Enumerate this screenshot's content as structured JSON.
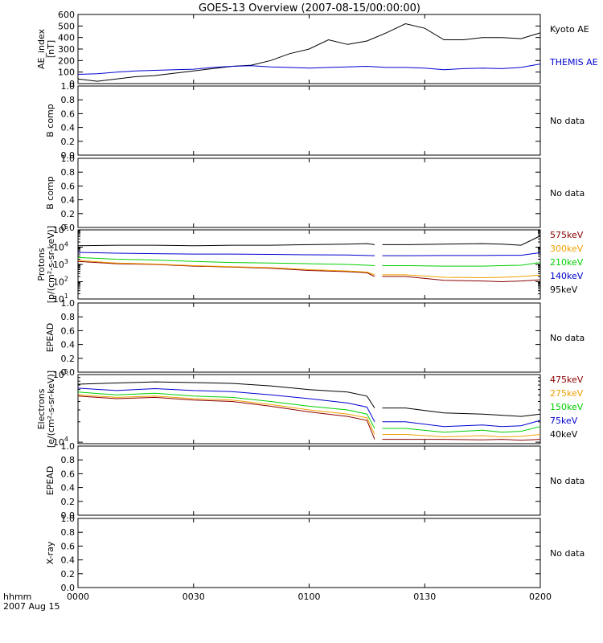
{
  "title": "GOES-13 Overview (2007-08-15/00:00:00)",
  "footer": {
    "left_label": "hhmm",
    "date_label": "2007 Aug 15"
  },
  "colors": {
    "black": "#000000",
    "blue": "#0000d0",
    "green": "#00d000",
    "orange": "#f0a000",
    "darkred": "#8b0000"
  },
  "chart_data": [
    {
      "type": "line",
      "ylabel": "AE_index",
      "ylabel2": "[nT]",
      "ylim": [
        0,
        600
      ],
      "yticks": [
        "0",
        "100",
        "200",
        "300",
        "400",
        "500",
        "600"
      ],
      "x": [
        0,
        5,
        10,
        15,
        20,
        25,
        30,
        35,
        40,
        45,
        50,
        55,
        60,
        65,
        70,
        75,
        80,
        85,
        90,
        95,
        100,
        105,
        110,
        115,
        120
      ],
      "series": [
        {
          "name": "Kyoto AE",
          "color": "#000000",
          "values": [
            40,
            20,
            40,
            60,
            70,
            90,
            110,
            130,
            150,
            160,
            200,
            260,
            300,
            380,
            340,
            370,
            440,
            520,
            480,
            380,
            380,
            400,
            400,
            390,
            440
          ]
        },
        {
          "name": "THEMIS AE",
          "color": "#0000d0",
          "values": [
            80,
            85,
            100,
            110,
            115,
            120,
            125,
            140,
            150,
            155,
            145,
            140,
            135,
            140,
            145,
            150,
            140,
            140,
            135,
            120,
            130,
            135,
            130,
            140,
            170
          ]
        }
      ]
    },
    {
      "type": "line",
      "ylabel": "B comp",
      "ylim": [
        0,
        1
      ],
      "yticks": [
        "0.0",
        "0.2",
        "0.4",
        "0.6",
        "0.8",
        "1.0"
      ],
      "status": "No data",
      "series": []
    },
    {
      "type": "line",
      "ylabel": "B comp",
      "ylim": [
        0,
        1
      ],
      "yticks": [
        "0.0",
        "0.2",
        "0.4",
        "0.6",
        "0.8",
        "1.0"
      ],
      "status": "No data",
      "series": []
    },
    {
      "type": "line",
      "scale": "log",
      "ylabel": "Protons",
      "ylabel2": "[p/(cm²-s-sr-keV)]",
      "ylim_exp": [
        1,
        5
      ],
      "ytick_exps": [
        1,
        2,
        3,
        4,
        5
      ],
      "x": [
        0,
        10,
        20,
        30,
        40,
        50,
        60,
        70,
        75,
        85,
        95,
        105,
        110,
        115,
        120
      ],
      "gap": [
        77,
        79
      ],
      "series": [
        {
          "name": "575keV",
          "color": "#8b0000",
          "values": [
            1500,
            1100,
            1000,
            800,
            700,
            600,
            450,
            380,
            330,
            200,
            120,
            110,
            100,
            110,
            130
          ]
        },
        {
          "name": "300keV",
          "color": "#f0a000",
          "values": [
            1700,
            1200,
            1050,
            850,
            750,
            650,
            500,
            420,
            360,
            250,
            180,
            170,
            180,
            200,
            240
          ]
        },
        {
          "name": "210keV",
          "color": "#00d000",
          "values": [
            2500,
            2000,
            1800,
            1500,
            1300,
            1200,
            1100,
            1000,
            900,
            850,
            800,
            800,
            850,
            900,
            1300
          ]
        },
        {
          "name": "140keV",
          "color": "#0000d0",
          "values": [
            5000,
            4500,
            4200,
            4000,
            4000,
            3800,
            3600,
            3500,
            3300,
            3200,
            3300,
            3300,
            3400,
            3400,
            4800
          ]
        },
        {
          "name": "95keV",
          "color": "#000000",
          "values": [
            12000,
            13000,
            13000,
            12000,
            13000,
            13000,
            14000,
            15000,
            16000,
            14000,
            15000,
            16000,
            15000,
            13000,
            45000
          ]
        }
      ]
    },
    {
      "type": "line",
      "ylabel": "EPEAD",
      "ylim": [
        0,
        1
      ],
      "yticks": [
        "0.0",
        "0.2",
        "0.4",
        "0.6",
        "0.8",
        "1.0"
      ],
      "status": "No data",
      "series": []
    },
    {
      "type": "line",
      "scale": "log",
      "ylabel": "Electrons",
      "ylabel2": "[e/(cm²-s-sr-keV)]",
      "ylim": [
        9500,
        100000
      ],
      "ytick_exps": [
        4,
        5
      ],
      "x": [
        0,
        10,
        20,
        30,
        40,
        50,
        60,
        70,
        75,
        85,
        95,
        105,
        110,
        115,
        120
      ],
      "gap": [
        77,
        79
      ],
      "series": [
        {
          "name": "475keV",
          "color": "#8b0000",
          "values": [
            48000,
            44000,
            46000,
            42000,
            40000,
            34000,
            28000,
            24000,
            21000,
            11000,
            11000,
            10800,
            11000,
            10700,
            11000
          ]
        },
        {
          "name": "275keV",
          "color": "#f0a000",
          "values": [
            50000,
            46000,
            48000,
            44000,
            42000,
            36000,
            30000,
            26000,
            23000,
            13000,
            12000,
            12500,
            12000,
            12200,
            13000
          ]
        },
        {
          "name": "150keV",
          "color": "#00d000",
          "values": [
            55000,
            50000,
            53000,
            48000,
            46000,
            40000,
            34000,
            30000,
            26000,
            16000,
            14000,
            15000,
            14000,
            14500,
            17000
          ]
        },
        {
          "name": "75keV",
          "color": "#0000d0",
          "values": [
            63000,
            58000,
            62000,
            58000,
            56000,
            50000,
            44000,
            38000,
            33000,
            20000,
            17000,
            18000,
            17000,
            17500,
            21000
          ]
        },
        {
          "name": "40keV",
          "color": "#000000",
          "values": [
            72000,
            75000,
            78000,
            76000,
            74000,
            68000,
            60000,
            55000,
            48000,
            32000,
            27000,
            26000,
            25000,
            24000,
            26000
          ]
        }
      ]
    },
    {
      "type": "line",
      "ylabel": "EPEAD",
      "ylim": [
        0,
        1
      ],
      "yticks": [
        "0.0",
        "0.2",
        "0.4",
        "0.6",
        "0.8",
        "1.0"
      ],
      "status": "No data",
      "series": []
    },
    {
      "type": "line",
      "ylabel": "X-ray",
      "ylim": [
        0,
        1
      ],
      "yticks": [
        "0.0",
        "0.2",
        "0.4",
        "0.6",
        "0.8",
        "1.0"
      ],
      "status": "No data",
      "series": []
    }
  ],
  "x_axis": {
    "xlim": [
      0,
      120
    ],
    "ticks": [
      {
        "value": 0,
        "label": "0000"
      },
      {
        "value": 30,
        "label": "0030"
      },
      {
        "value": 60,
        "label": "0100"
      },
      {
        "value": 90,
        "label": "0130"
      },
      {
        "value": 120,
        "label": "0200"
      }
    ]
  }
}
